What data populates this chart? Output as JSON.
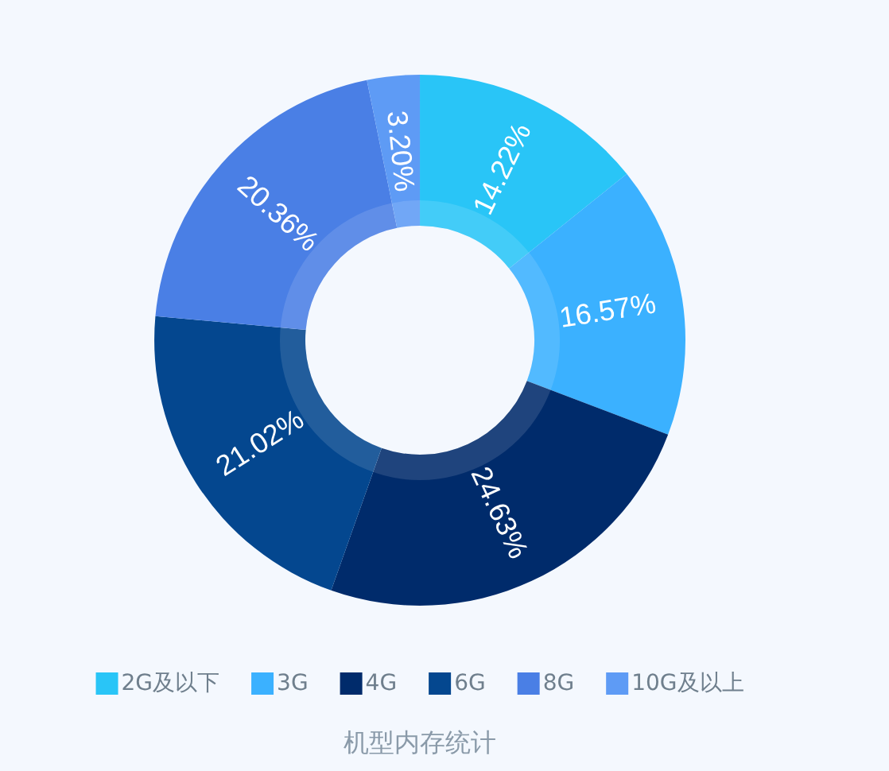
{
  "chart_data": {
    "type": "donut",
    "title": "机型内存统计",
    "categories": [
      "2G及以下",
      "3G",
      "4G",
      "6G",
      "8G",
      "10G及以上"
    ],
    "values": [
      14.22,
      16.57,
      24.63,
      21.02,
      20.36,
      3.2
    ],
    "colors": [
      "#29c5f7",
      "#3bb1ff",
      "#002b6b",
      "#04478f",
      "#4a7fe5",
      "#5e9bf5"
    ],
    "value_labels": [
      "14.22%",
      "16.57%",
      "24.63%",
      "21.02%",
      "20.36%",
      "3.20%"
    ],
    "legend": "bottom"
  }
}
